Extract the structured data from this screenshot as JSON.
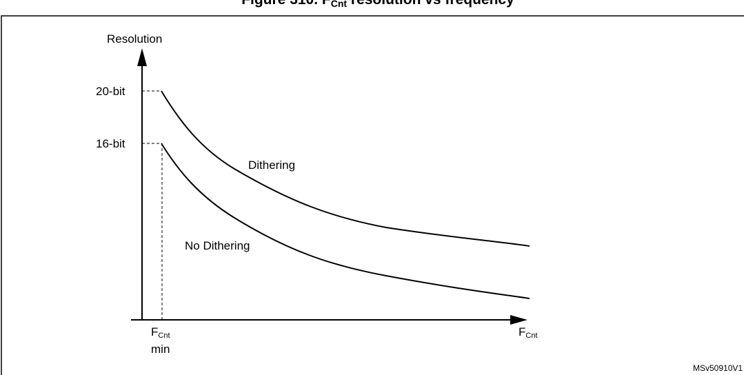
{
  "title": {
    "prefix": "Figure 310. F",
    "sub": "Cnt",
    "suffix": " resolution vs frequency"
  },
  "y_axis": {
    "label": "Resolution",
    "ticks": [
      "20-bit",
      "16-bit"
    ]
  },
  "x_axis": {
    "label_main": "F",
    "label_sub": "Cnt",
    "min_main": "F",
    "min_sub": "Cnt",
    "min_word": "min"
  },
  "curves": [
    {
      "name": "Dithering"
    },
    {
      "name": "No Dithering"
    }
  ],
  "figure_id": "MSv50910V1",
  "colors": {
    "line": "#000000",
    "background": "#ffffff"
  }
}
